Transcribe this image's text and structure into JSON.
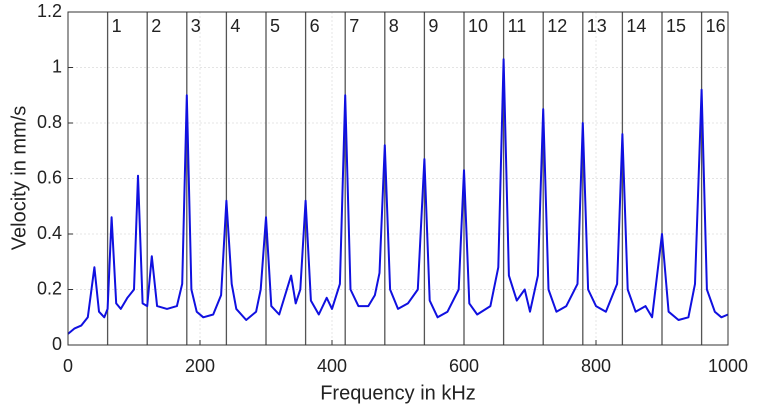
{
  "chart_data": {
    "type": "line",
    "xlabel": "Frequency in kHz",
    "ylabel": "Velocity in mm/s",
    "xlim": [
      0,
      1000
    ],
    "xticks": [
      0,
      200,
      400,
      600,
      800,
      1000
    ],
    "ylim": [
      0,
      1.2
    ],
    "yticks": [
      0,
      0.2,
      0.4,
      0.6,
      0.8,
      1,
      1.2
    ],
    "grid": true,
    "markers": {
      "x": [
        60,
        120,
        180,
        240,
        300,
        360,
        420,
        480,
        540,
        600,
        660,
        720,
        780,
        840,
        900,
        960
      ],
      "labels": [
        "1",
        "2",
        "3",
        "4",
        "5",
        "6",
        "7",
        "8",
        "9",
        "10",
        "11",
        "12",
        "13",
        "14",
        "15",
        "16"
      ],
      "color": "#555555"
    },
    "series": [
      {
        "color": "#1010e0",
        "x": [
          0,
          10,
          20,
          30,
          40,
          47,
          55,
          60,
          66,
          73,
          80,
          90,
          100,
          106,
          113,
          120,
          127,
          135,
          150,
          165,
          173,
          180,
          187,
          195,
          205,
          220,
          232,
          240,
          248,
          255,
          270,
          285,
          292,
          300,
          308,
          320,
          338,
          345,
          352,
          360,
          368,
          380,
          392,
          400,
          412,
          420,
          428,
          440,
          455,
          465,
          472,
          480,
          488,
          500,
          515,
          530,
          540,
          548,
          560,
          575,
          592,
          600,
          608,
          620,
          640,
          652,
          660,
          668,
          680,
          692,
          700,
          712,
          720,
          728,
          740,
          755,
          772,
          780,
          788,
          800,
          815,
          832,
          840,
          848,
          860,
          875,
          885,
          900,
          910,
          925,
          940,
          950,
          960,
          968,
          980,
          990,
          1000
        ],
        "values": [
          0.04,
          0.06,
          0.07,
          0.1,
          0.28,
          0.12,
          0.1,
          0.13,
          0.46,
          0.15,
          0.13,
          0.17,
          0.2,
          0.61,
          0.15,
          0.14,
          0.32,
          0.14,
          0.13,
          0.14,
          0.22,
          0.9,
          0.2,
          0.12,
          0.1,
          0.11,
          0.18,
          0.52,
          0.22,
          0.13,
          0.09,
          0.12,
          0.2,
          0.46,
          0.14,
          0.11,
          0.25,
          0.15,
          0.2,
          0.52,
          0.16,
          0.11,
          0.17,
          0.13,
          0.22,
          0.9,
          0.2,
          0.14,
          0.14,
          0.18,
          0.26,
          0.72,
          0.2,
          0.13,
          0.15,
          0.2,
          0.67,
          0.16,
          0.1,
          0.12,
          0.2,
          0.63,
          0.15,
          0.11,
          0.14,
          0.28,
          1.03,
          0.25,
          0.16,
          0.2,
          0.12,
          0.25,
          0.85,
          0.2,
          0.12,
          0.14,
          0.22,
          0.8,
          0.2,
          0.14,
          0.12,
          0.22,
          0.76,
          0.2,
          0.12,
          0.14,
          0.1,
          0.4,
          0.12,
          0.09,
          0.1,
          0.22,
          0.92,
          0.2,
          0.12,
          0.1,
          0.11
        ]
      }
    ]
  }
}
